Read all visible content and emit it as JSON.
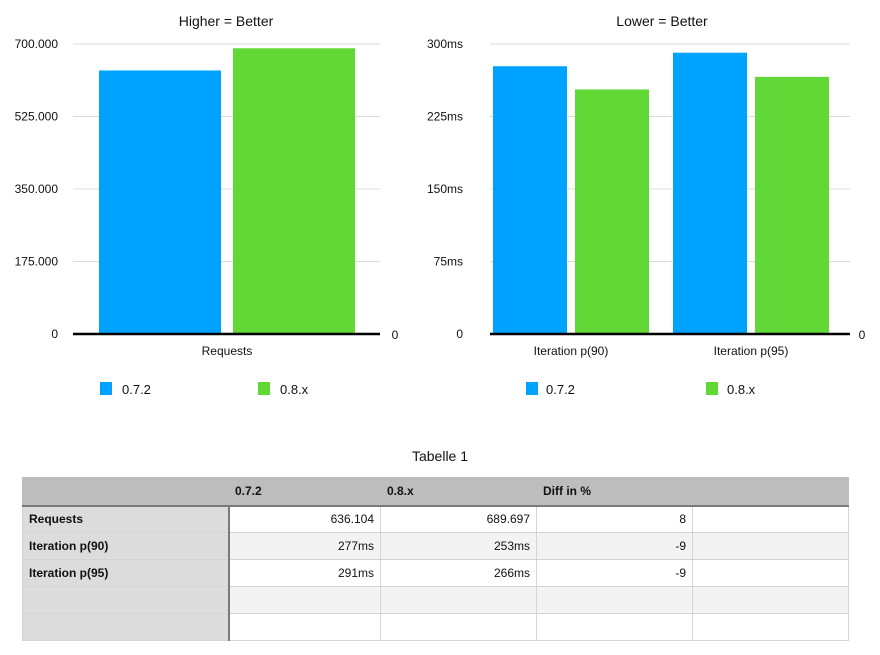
{
  "chart_data": [
    {
      "type": "bar",
      "title": "Higher = Better",
      "categories": [
        "Requests"
      ],
      "series": [
        {
          "name": "0.7.2",
          "values": [
            636104
          ],
          "color": "#00a2ff"
        },
        {
          "name": "0.8.x",
          "values": [
            689697
          ],
          "color": "#61d836"
        }
      ],
      "ylim": [
        0,
        700000
      ],
      "yticks": [
        "0",
        "175.000",
        "350.000",
        "525.000",
        "700.000"
      ],
      "right_axis_label": "0",
      "grid": true,
      "legend": "bottom"
    },
    {
      "type": "bar",
      "title": "Lower = Better",
      "categories": [
        "Iteration p(90)",
        "Iteration p(95)"
      ],
      "series": [
        {
          "name": "0.7.2",
          "values": [
            277,
            291
          ],
          "color": "#00a2ff"
        },
        {
          "name": "0.8.x",
          "values": [
            253,
            266
          ],
          "color": "#61d836"
        }
      ],
      "ylim": [
        0,
        300
      ],
      "yticks": [
        "0",
        "75ms",
        "150ms",
        "225ms",
        "300ms"
      ],
      "right_axis_label": "0",
      "grid": true,
      "legend": "bottom"
    }
  ],
  "table": {
    "title": "Tabelle 1",
    "headers": [
      "",
      "0.7.2",
      "0.8.x",
      "Diff in %",
      ""
    ],
    "rows": [
      [
        "Requests",
        "636.104",
        "689.697",
        "8",
        ""
      ],
      [
        "Iteration p(90)",
        "277ms",
        "253ms",
        "-9",
        ""
      ],
      [
        "Iteration p(95)",
        "291ms",
        "266ms",
        "-9",
        ""
      ],
      [
        "",
        "",
        "",
        "",
        ""
      ],
      [
        "",
        "",
        "",
        "",
        ""
      ]
    ]
  }
}
